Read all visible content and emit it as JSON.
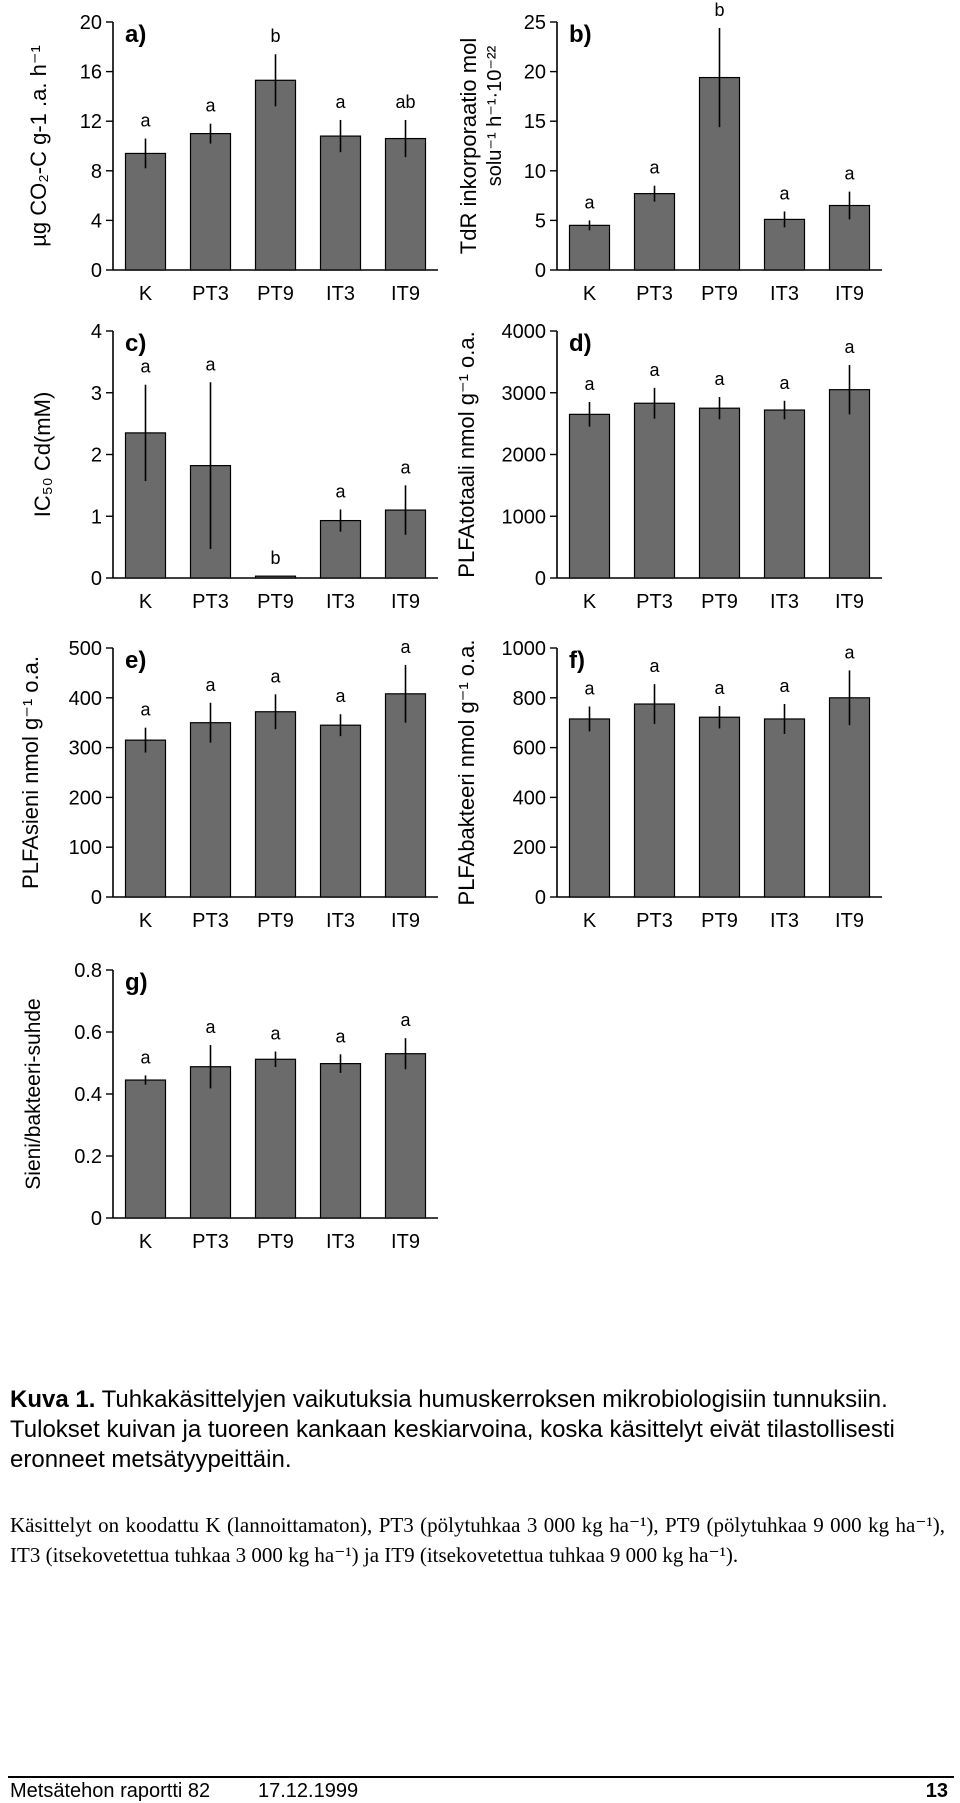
{
  "chart_data": [
    {
      "panel": "a)",
      "type": "bar",
      "categories": [
        "K",
        "PT3",
        "PT9",
        "IT3",
        "IT9"
      ],
      "values": [
        9.4,
        11.0,
        15.3,
        10.8,
        10.6
      ],
      "errors": [
        1.2,
        0.8,
        2.1,
        1.3,
        1.5
      ],
      "letters": [
        "a",
        "a",
        "b",
        "a",
        "ab"
      ],
      "ylabel": "µg CO₂-C g-1 .a. h⁻¹",
      "ylim": [
        0,
        20
      ],
      "yticks": [
        "0",
        "4",
        "8",
        "12",
        "16",
        "20"
      ]
    },
    {
      "panel": "b)",
      "type": "bar",
      "categories": [
        "K",
        "PT3",
        "PT9",
        "IT3",
        "IT9"
      ],
      "values": [
        4.5,
        7.7,
        19.4,
        5.1,
        6.5
      ],
      "errors": [
        0.5,
        0.8,
        5.0,
        0.8,
        1.4
      ],
      "letters": [
        "a",
        "a",
        "b",
        "a",
        "a"
      ],
      "ylabel": "TdR inkorporaatio mol",
      "ylabel2": "solu⁻¹ h⁻¹·10⁻²²",
      "ylim": [
        0,
        25
      ],
      "yticks": [
        "0",
        "5",
        "10",
        "15",
        "20",
        "25"
      ]
    },
    {
      "panel": "c)",
      "type": "bar",
      "categories": [
        "K",
        "PT3",
        "PT9",
        "IT3",
        "IT9"
      ],
      "values": [
        2.35,
        1.82,
        0.03,
        0.93,
        1.1
      ],
      "errors": [
        0.78,
        1.35,
        0.0,
        0.18,
        0.4
      ],
      "letters": [
        "a",
        "a",
        "b",
        "a",
        "a"
      ],
      "ylabel": "IC₅₀ Cd(mM)",
      "ylim": [
        0,
        4
      ],
      "yticks": [
        "0",
        "1",
        "2",
        "3",
        "4"
      ]
    },
    {
      "panel": "d)",
      "type": "bar",
      "categories": [
        "K",
        "PT3",
        "PT9",
        "IT3",
        "IT9"
      ],
      "values": [
        2650,
        2830,
        2750,
        2720,
        3050
      ],
      "errors": [
        200,
        250,
        180,
        150,
        400
      ],
      "letters": [
        "a",
        "a",
        "a",
        "a",
        "a"
      ],
      "ylabel": "PLFAtotaali nmol g⁻¹ o.a.",
      "ylim": [
        0,
        4000
      ],
      "yticks": [
        "0",
        "1000",
        "2000",
        "3000",
        "4000"
      ]
    },
    {
      "panel": "e)",
      "type": "bar",
      "categories": [
        "K",
        "PT3",
        "PT9",
        "IT3",
        "IT9"
      ],
      "values": [
        315,
        350,
        372,
        345,
        408
      ],
      "errors": [
        25,
        40,
        35,
        22,
        58
      ],
      "letters": [
        "a",
        "a",
        "a",
        "a",
        "a"
      ],
      "ylabel": "PLFAsieni nmol g⁻¹ o.a.",
      "ylim": [
        0,
        500
      ],
      "yticks": [
        "0",
        "100",
        "200",
        "300",
        "400",
        "500"
      ]
    },
    {
      "panel": "f)",
      "type": "bar",
      "categories": [
        "K",
        "PT3",
        "PT9",
        "IT3",
        "IT9"
      ],
      "values": [
        715,
        775,
        722,
        715,
        800
      ],
      "errors": [
        50,
        80,
        45,
        60,
        110
      ],
      "letters": [
        "a",
        "a",
        "a",
        "a",
        "a"
      ],
      "ylabel": "PLFAbakteeri nmol g⁻¹ o.a.",
      "ylim": [
        0,
        1000
      ],
      "yticks": [
        "0",
        "200",
        "400",
        "600",
        "800",
        "1000"
      ]
    },
    {
      "panel": "g)",
      "type": "bar",
      "categories": [
        "K",
        "PT3",
        "PT9",
        "IT3",
        "IT9"
      ],
      "values": [
        0.445,
        0.488,
        0.512,
        0.498,
        0.53
      ],
      "errors": [
        0.015,
        0.07,
        0.025,
        0.03,
        0.05
      ],
      "letters": [
        "a",
        "a",
        "a",
        "a",
        "a"
      ],
      "ylabel": "Sieni/bakteeri-suhde",
      "ylim": [
        0,
        0.8
      ],
      "yticks": [
        "0",
        "0.2",
        "0.4",
        "0.6",
        "0.8"
      ]
    }
  ],
  "caption": {
    "label": "Kuva 1.",
    "text": " Tuhkakäsittelyjen vaikutuksia humuskerroksen mikrobiologisiin tunnuksiin. Tulokset kuivan ja tuoreen kankaan keskiarvoina, koska käsittelyt eivät tilastollisesti eronneet metsätyypeittäin."
  },
  "note": "Käsittelyt on koodattu K (lannoittamaton), PT3 (pölytuhkaa 3 000 kg ha⁻¹), PT9 (pölytuhkaa 9 000 kg ha⁻¹), IT3 (itsekovetettua tuhkaa 3 000 kg ha⁻¹) ja IT9 (itsekovetettua tuhkaa 9 000 kg ha⁻¹).",
  "footer": {
    "left": "Metsätehon raportti 82",
    "date": "17.12.1999",
    "page": "13"
  },
  "colors": {
    "bar": "#6b6b6b",
    "axis": "#000000"
  }
}
